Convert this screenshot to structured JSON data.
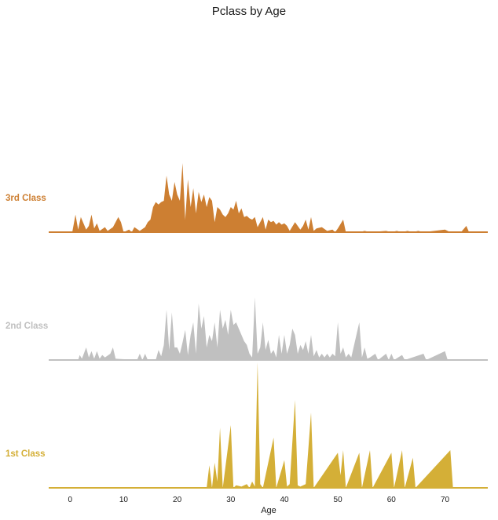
{
  "chart_data": {
    "type": "area",
    "title": "Pclass by Age",
    "xlabel": "Age",
    "ylabel": "",
    "xlim": [
      -4,
      78
    ],
    "xticks": [
      "0",
      "10",
      "20",
      "30",
      "40",
      "50",
      "60",
      "70"
    ],
    "grid": false,
    "legend": "none",
    "series": [
      {
        "name": "3rd Class",
        "color": "#cd7f32",
        "points": [
          [
            0.4,
            0
          ],
          [
            1,
            14
          ],
          [
            1.5,
            2
          ],
          [
            2,
            12
          ],
          [
            3,
            2
          ],
          [
            3.5,
            5
          ],
          [
            4,
            14
          ],
          [
            4.5,
            3
          ],
          [
            5,
            7
          ],
          [
            5.5,
            1
          ],
          [
            6.5,
            4
          ],
          [
            7,
            1
          ],
          [
            8,
            4
          ],
          [
            9,
            12
          ],
          [
            9.5,
            8
          ],
          [
            10,
            0
          ],
          [
            11,
            2
          ],
          [
            11.5,
            0
          ],
          [
            12,
            4
          ],
          [
            13,
            1
          ],
          [
            14,
            4
          ],
          [
            14.5,
            8
          ],
          [
            15,
            10
          ],
          [
            15.5,
            20
          ],
          [
            16,
            24
          ],
          [
            16.5,
            22
          ],
          [
            17,
            24
          ],
          [
            17.5,
            25
          ],
          [
            18,
            45
          ],
          [
            18.5,
            30
          ],
          [
            19,
            25
          ],
          [
            19.5,
            40
          ],
          [
            20,
            30
          ],
          [
            20.5,
            25
          ],
          [
            21,
            55
          ],
          [
            21.5,
            10
          ],
          [
            22,
            42
          ],
          [
            22.5,
            20
          ],
          [
            23,
            35
          ],
          [
            23.5,
            15
          ],
          [
            24,
            32
          ],
          [
            24.5,
            24
          ],
          [
            25,
            30
          ],
          [
            25.5,
            20
          ],
          [
            26,
            28
          ],
          [
            26.5,
            25
          ],
          [
            27,
            8
          ],
          [
            27.5,
            20
          ],
          [
            28,
            18
          ],
          [
            28.5,
            14
          ],
          [
            29,
            12
          ],
          [
            29.5,
            15
          ],
          [
            30,
            20
          ],
          [
            30.5,
            18
          ],
          [
            31,
            25
          ],
          [
            31.5,
            15
          ],
          [
            32,
            19
          ],
          [
            32.5,
            12
          ],
          [
            33,
            13
          ],
          [
            33.5,
            11
          ],
          [
            34,
            10
          ],
          [
            34.5,
            12
          ],
          [
            35,
            4
          ],
          [
            36,
            12
          ],
          [
            36.5,
            2
          ],
          [
            37,
            10
          ],
          [
            37.5,
            8
          ],
          [
            38,
            9
          ],
          [
            38.5,
            6
          ],
          [
            39,
            8
          ],
          [
            39.5,
            6
          ],
          [
            40,
            7
          ],
          [
            40.5,
            5
          ],
          [
            41,
            1
          ],
          [
            42,
            8
          ],
          [
            43,
            2
          ],
          [
            43.5,
            5
          ],
          [
            44,
            10
          ],
          [
            44.5,
            2
          ],
          [
            45,
            12
          ],
          [
            45.5,
            1
          ],
          [
            46,
            3
          ],
          [
            47,
            4
          ],
          [
            48,
            1
          ],
          [
            49,
            2
          ],
          [
            49.5,
            0
          ],
          [
            50,
            3
          ],
          [
            51,
            10
          ],
          [
            51.5,
            0
          ],
          [
            52,
            0
          ],
          [
            54,
            0
          ],
          [
            55,
            1
          ],
          [
            56,
            0
          ],
          [
            59,
            1
          ],
          [
            60,
            0
          ],
          [
            61,
            1
          ],
          [
            62,
            0
          ],
          [
            63,
            1
          ],
          [
            64,
            0
          ],
          [
            65,
            1
          ],
          [
            66,
            0
          ],
          [
            70,
            2
          ],
          [
            71,
            0
          ],
          [
            73,
            0
          ],
          [
            74,
            5
          ],
          [
            74.5,
            0
          ]
        ]
      },
      {
        "name": "2nd Class",
        "color": "#c0c0c0",
        "points": [
          [
            1.5,
            0
          ],
          [
            1.8,
            4
          ],
          [
            2.2,
            1
          ],
          [
            3,
            10
          ],
          [
            3.5,
            2
          ],
          [
            4,
            7
          ],
          [
            4.5,
            1
          ],
          [
            5,
            7
          ],
          [
            5.5,
            1
          ],
          [
            6,
            4
          ],
          [
            6.5,
            2
          ],
          [
            7.5,
            5
          ],
          [
            8,
            10
          ],
          [
            8.5,
            1
          ],
          [
            12.5,
            0
          ],
          [
            13,
            5
          ],
          [
            13.5,
            0
          ],
          [
            14,
            5
          ],
          [
            14.5,
            0
          ],
          [
            16,
            0
          ],
          [
            16.5,
            8
          ],
          [
            17,
            3
          ],
          [
            17.5,
            12
          ],
          [
            18,
            40
          ],
          [
            18.5,
            8
          ],
          [
            19,
            38
          ],
          [
            19.5,
            10
          ],
          [
            20,
            10
          ],
          [
            20.5,
            5
          ],
          [
            21,
            14
          ],
          [
            21.5,
            24
          ],
          [
            22,
            4
          ],
          [
            22.5,
            20
          ],
          [
            23,
            30
          ],
          [
            23.5,
            5
          ],
          [
            24,
            45
          ],
          [
            24.5,
            25
          ],
          [
            25,
            35
          ],
          [
            25.5,
            10
          ],
          [
            26,
            20
          ],
          [
            26.5,
            15
          ],
          [
            27,
            30
          ],
          [
            27.5,
            10
          ],
          [
            28,
            40
          ],
          [
            28.5,
            25
          ],
          [
            29,
            32
          ],
          [
            29.5,
            20
          ],
          [
            30,
            40
          ],
          [
            30.5,
            28
          ],
          [
            31,
            30
          ],
          [
            31.5,
            25
          ],
          [
            32,
            20
          ],
          [
            32.5,
            15
          ],
          [
            33,
            12
          ],
          [
            33.5,
            5
          ],
          [
            34,
            2
          ],
          [
            34.5,
            50
          ],
          [
            35,
            5
          ],
          [
            35.5,
            10
          ],
          [
            36,
            30
          ],
          [
            36.5,
            8
          ],
          [
            37,
            16
          ],
          [
            37.5,
            5
          ],
          [
            38,
            8
          ],
          [
            38.5,
            2
          ],
          [
            39,
            20
          ],
          [
            39.5,
            5
          ],
          [
            40,
            20
          ],
          [
            40.5,
            5
          ],
          [
            41,
            12
          ],
          [
            41.5,
            25
          ],
          [
            42,
            20
          ],
          [
            42.5,
            5
          ],
          [
            43,
            12
          ],
          [
            43.5,
            8
          ],
          [
            44,
            15
          ],
          [
            44.5,
            5
          ],
          [
            45,
            20
          ],
          [
            45.5,
            3
          ],
          [
            46,
            8
          ],
          [
            46.5,
            2
          ],
          [
            47,
            5
          ],
          [
            47.5,
            2
          ],
          [
            48,
            5
          ],
          [
            48.5,
            2
          ],
          [
            49,
            5
          ],
          [
            49.5,
            3
          ],
          [
            50,
            30
          ],
          [
            50.5,
            5
          ],
          [
            51,
            10
          ],
          [
            51.5,
            2
          ],
          [
            52,
            5
          ],
          [
            52.5,
            2
          ],
          [
            54,
            30
          ],
          [
            54.5,
            2
          ],
          [
            55,
            10
          ],
          [
            55.5,
            1
          ],
          [
            56,
            2
          ],
          [
            57,
            5
          ],
          [
            57.5,
            0
          ],
          [
            59,
            5
          ],
          [
            59.5,
            0
          ],
          [
            60,
            5
          ],
          [
            60.5,
            0
          ],
          [
            62,
            4
          ],
          [
            62.5,
            0
          ],
          [
            66,
            5
          ],
          [
            66.5,
            0
          ],
          [
            70,
            7
          ],
          [
            70.5,
            0
          ]
        ]
      },
      {
        "name": "1st Class",
        "color": "#d4af37",
        "points": [
          [
            25.5,
            0
          ],
          [
            26,
            18
          ],
          [
            26.5,
            0
          ],
          [
            27,
            20
          ],
          [
            27.5,
            5
          ],
          [
            28,
            48
          ],
          [
            28.5,
            0
          ],
          [
            30,
            50
          ],
          [
            30.5,
            0
          ],
          [
            31,
            2
          ],
          [
            32,
            1
          ],
          [
            33,
            3
          ],
          [
            33.5,
            0
          ],
          [
            34,
            5
          ],
          [
            34.5,
            1
          ],
          [
            35,
            100
          ],
          [
            35.5,
            3
          ],
          [
            36,
            0
          ],
          [
            38,
            40
          ],
          [
            38.5,
            0
          ],
          [
            40,
            22
          ],
          [
            40.5,
            1
          ],
          [
            41,
            3
          ],
          [
            42,
            70
          ],
          [
            42.5,
            2
          ],
          [
            43,
            1
          ],
          [
            44,
            3
          ],
          [
            45,
            60
          ],
          [
            45.5,
            0
          ],
          [
            50,
            28
          ],
          [
            50.5,
            10
          ],
          [
            51,
            30
          ],
          [
            51.5,
            0
          ],
          [
            54,
            28
          ],
          [
            54.5,
            0
          ],
          [
            56,
            30
          ],
          [
            56.5,
            0
          ],
          [
            60,
            28
          ],
          [
            60.5,
            0
          ],
          [
            62,
            30
          ],
          [
            62.5,
            0
          ],
          [
            64,
            24
          ],
          [
            64.5,
            0
          ],
          [
            71,
            30
          ],
          [
            71.5,
            0
          ]
        ]
      }
    ]
  }
}
